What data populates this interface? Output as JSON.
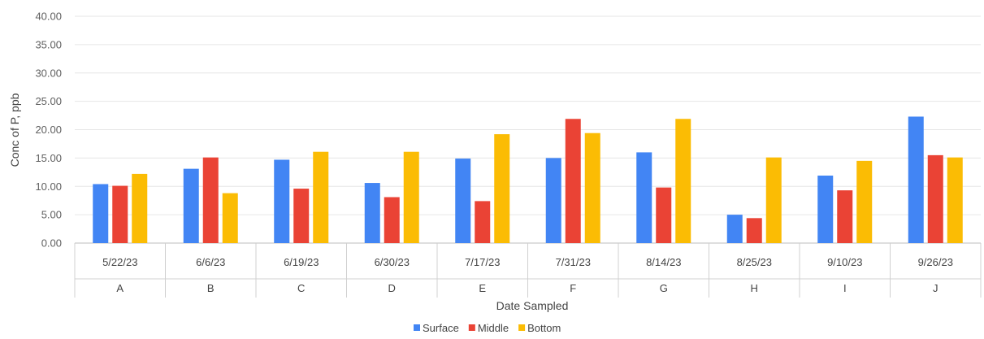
{
  "chart_data": {
    "type": "bar",
    "title": "",
    "xlabel": "Date Sampled",
    "ylabel": "Conc of P, ppb",
    "ylim": [
      0,
      40
    ],
    "yticks": [
      "0.00",
      "5.00",
      "10.00",
      "15.00",
      "20.00",
      "25.00",
      "30.00",
      "35.00",
      "40.00"
    ],
    "grid": true,
    "legend_position": "bottom",
    "dates": [
      "5/22/23",
      "6/6/23",
      "6/19/23",
      "6/30/23",
      "7/17/23",
      "7/31/23",
      "8/14/23",
      "8/25/23",
      "9/10/23",
      "9/26/23"
    ],
    "categories": [
      "A",
      "B",
      "C",
      "D",
      "E",
      "F",
      "G",
      "H",
      "I",
      "J"
    ],
    "series": [
      {
        "name": "Surface",
        "color": "#4285f4",
        "values": [
          10.4,
          13.1,
          14.7,
          10.6,
          14.9,
          15.0,
          16.0,
          5.0,
          11.9,
          22.3
        ]
      },
      {
        "name": "Middle",
        "color": "#ea4335",
        "values": [
          10.1,
          15.1,
          9.6,
          8.1,
          7.4,
          21.9,
          9.8,
          4.4,
          9.3,
          15.5
        ]
      },
      {
        "name": "Bottom",
        "color": "#fbbc04",
        "values": [
          12.2,
          8.8,
          16.1,
          16.1,
          19.2,
          19.4,
          21.9,
          15.1,
          14.5,
          15.1
        ]
      }
    ]
  }
}
